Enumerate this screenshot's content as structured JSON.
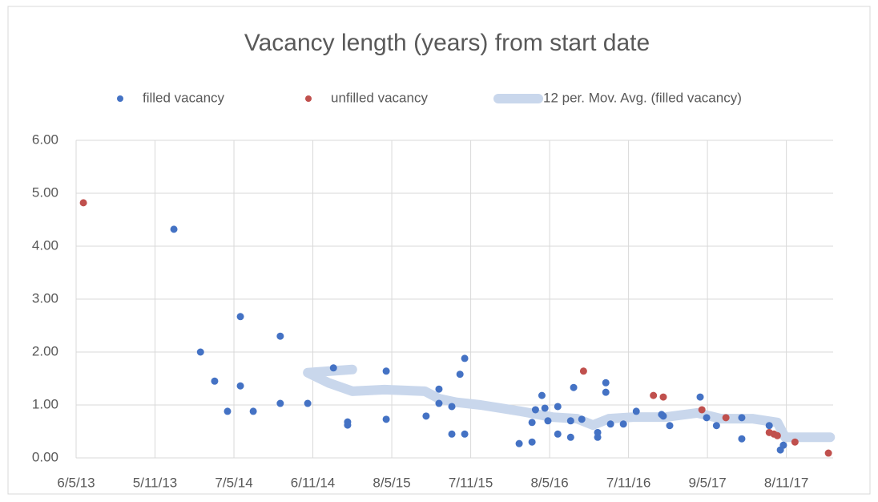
{
  "chart_data": {
    "type": "scatter",
    "title": "Vacancy length (years) from start date",
    "series": [
      {
        "name": "filled vacancy",
        "type": "scatter",
        "color": "#4472c4",
        "x": [
          41628,
          41690,
          41723,
          41753,
          41783,
          41783,
          41813,
          41876,
          41876,
          41940,
          42000,
          42033,
          42033,
          42123,
          42123,
          42216,
          42246,
          42246,
          42276,
          42276,
          42295,
          42306,
          42306,
          42433,
          42463,
          42463,
          42471,
          42486,
          42493,
          42500,
          42523,
          42523,
          42553,
          42553,
          42560,
          42579,
          42616,
          42616,
          42635,
          42635,
          42646,
          42676,
          42706,
          42765,
          42769,
          42784,
          42855,
          42870,
          42893,
          42952,
          42952,
          43016,
          43042,
          43049
        ],
        "values": [
          4.32,
          2.0,
          1.45,
          0.88,
          2.67,
          1.36,
          0.88,
          2.3,
          1.03,
          1.03,
          1.7,
          0.68,
          0.62,
          1.64,
          0.73,
          0.79,
          1.3,
          1.03,
          0.97,
          0.45,
          1.58,
          1.88,
          0.45,
          0.27,
          0.3,
          0.67,
          0.91,
          1.18,
          0.94,
          0.7,
          0.97,
          0.45,
          0.39,
          0.7,
          1.33,
          0.73,
          0.48,
          0.39,
          1.42,
          1.24,
          0.64,
          0.64,
          0.88,
          0.82,
          0.79,
          0.61,
          1.15,
          0.76,
          0.61,
          0.76,
          0.36,
          0.61,
          0.15,
          0.24
        ]
      },
      {
        "name": "unfilled vacancy",
        "type": "scatter",
        "color": "#c0504d",
        "x": [
          41417,
          42583,
          42746,
          42769,
          42859,
          42915,
          43016,
          43027,
          43035,
          43076,
          43154
        ],
        "values": [
          4.82,
          1.64,
          1.18,
          1.15,
          0.91,
          0.76,
          0.48,
          0.45,
          0.42,
          0.3,
          0.09
        ]
      },
      {
        "name": "12 per. Mov. Avg. (filled vacancy)",
        "type": "line",
        "color": "#c9d7ec",
        "x": [
          42044,
          41940,
          41988,
          42044,
          42119,
          42213,
          42246,
          42287,
          42343,
          42437,
          42511,
          42568,
          42605,
          42642,
          42698,
          42773,
          42848,
          42904,
          42978,
          43035,
          43053,
          43158
        ],
        "values": [
          1.67,
          1.61,
          1.42,
          1.26,
          1.29,
          1.26,
          1.12,
          1.05,
          1.0,
          0.88,
          0.77,
          0.74,
          0.62,
          0.74,
          0.77,
          0.77,
          0.85,
          0.74,
          0.74,
          0.67,
          0.39,
          0.39
        ]
      }
    ],
    "xlim": [
      41400,
      43165
    ],
    "xticks": [
      {
        "value": 41400,
        "label": "6/5/13"
      },
      {
        "value": 41584,
        "label": "5/11/13"
      },
      {
        "value": 41768,
        "label": "7/5/14"
      },
      {
        "value": 41952,
        "label": "6/11/14"
      },
      {
        "value": 42136,
        "label": "8/5/15"
      },
      {
        "value": 42320,
        "label": "7/11/15"
      },
      {
        "value": 42504,
        "label": "8/5/16"
      },
      {
        "value": 42688,
        "label": "7/11/16"
      },
      {
        "value": 42872,
        "label": "9/5/17"
      },
      {
        "value": 43056,
        "label": "8/11/17"
      }
    ],
    "ylim": [
      0,
      6
    ],
    "yticks": [
      {
        "value": 0,
        "label": "0.00"
      },
      {
        "value": 1,
        "label": "1.00"
      },
      {
        "value": 2,
        "label": "2.00"
      },
      {
        "value": 3,
        "label": "3.00"
      },
      {
        "value": 4,
        "label": "4.00"
      },
      {
        "value": 5,
        "label": "5.00"
      },
      {
        "value": 6,
        "label": "6.00"
      }
    ],
    "grid": true,
    "legend": "top"
  }
}
